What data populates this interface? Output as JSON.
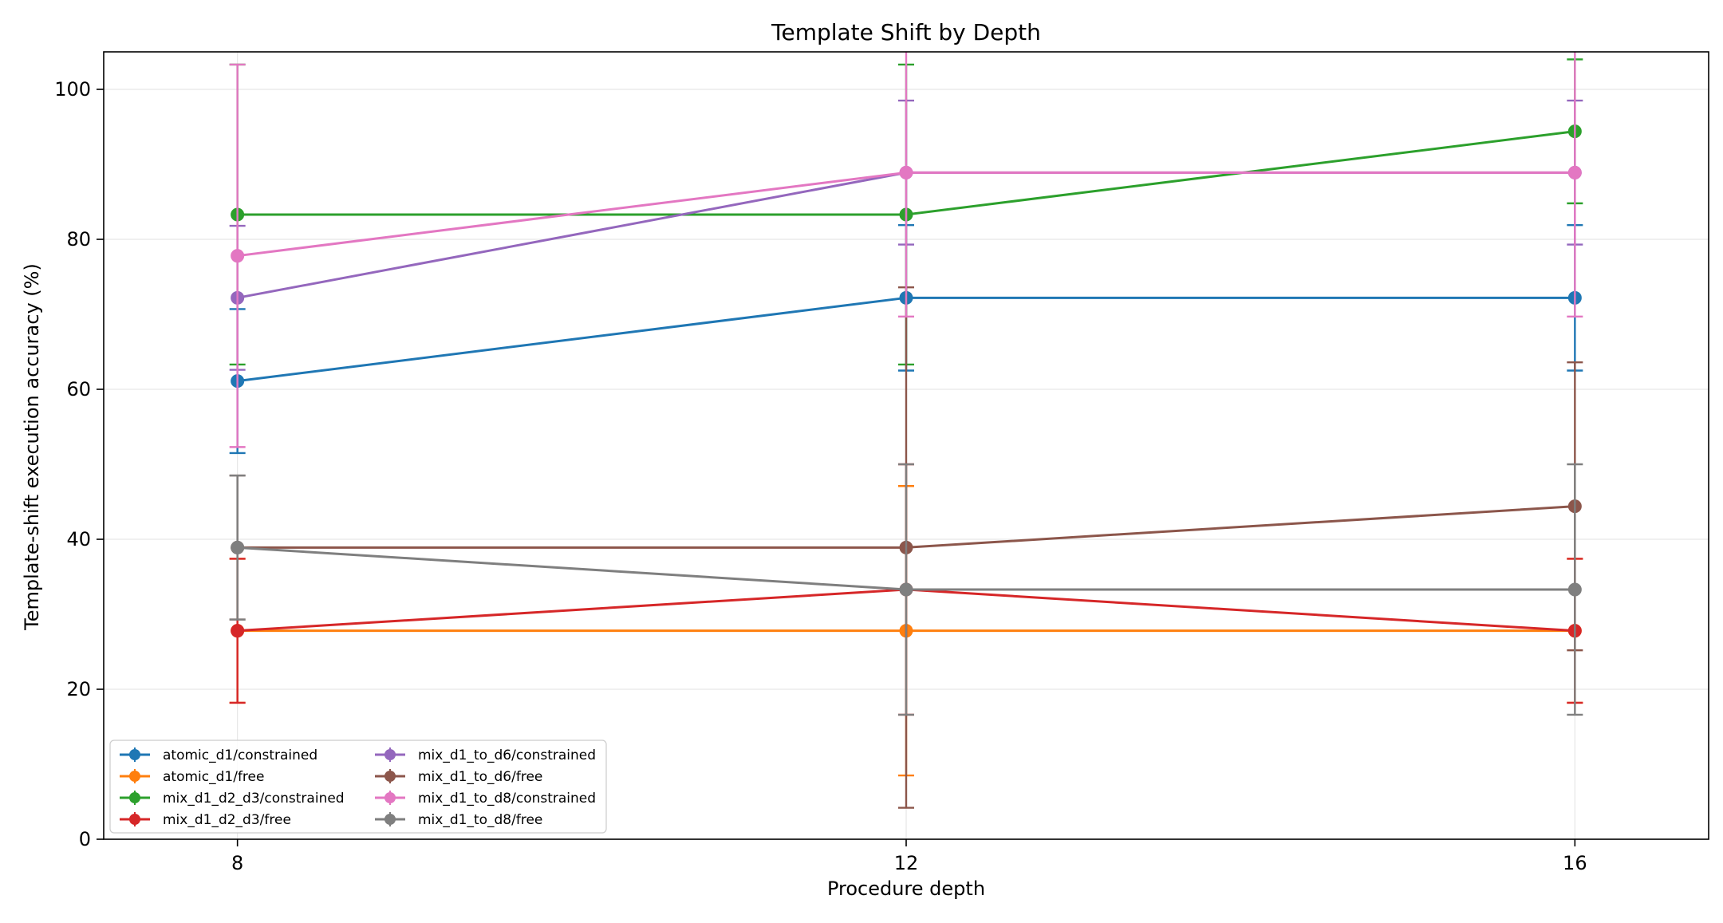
{
  "chart_data": {
    "type": "line",
    "title": "Template Shift by Depth",
    "xlabel": "Procedure depth",
    "ylabel": "Template-shift execution accuracy (%)",
    "x": [
      8,
      12,
      16
    ],
    "x_ticks": [
      "8",
      "12",
      "16"
    ],
    "y_ticks": [
      "0",
      "20",
      "40",
      "60",
      "80",
      "100"
    ],
    "xlim": [
      7.2,
      16.8
    ],
    "ylim": [
      0,
      105
    ],
    "grid": true,
    "legend_location": "lower-left",
    "legend_columns": 2,
    "series": [
      {
        "name": "atomic_d1/constrained",
        "color": "#1f77b4",
        "values": [
          61.1,
          72.2,
          72.2
        ],
        "err": [
          9.6,
          9.7,
          9.7
        ]
      },
      {
        "name": "atomic_d1/free",
        "color": "#ff7f0e",
        "values": [
          27.8,
          27.8,
          27.8
        ],
        "err": [
          9.6,
          19.3,
          9.6
        ]
      },
      {
        "name": "mix_d1_d2_d3/constrained",
        "color": "#2ca02c",
        "values": [
          83.3,
          83.3,
          94.4
        ],
        "err": [
          20.0,
          20.0,
          9.6
        ]
      },
      {
        "name": "mix_d1_d2_d3/free",
        "color": "#d62728",
        "values": [
          27.8,
          33.3,
          27.8
        ],
        "err": [
          9.6,
          16.7,
          9.6
        ]
      },
      {
        "name": "mix_d1_to_d6/constrained",
        "color": "#9467bd",
        "values": [
          72.2,
          88.9,
          88.9
        ],
        "err": [
          9.6,
          9.6,
          9.6
        ]
      },
      {
        "name": "mix_d1_to_d6/free",
        "color": "#8c564b",
        "values": [
          38.9,
          38.9,
          44.4
        ],
        "err": [
          9.6,
          34.7,
          19.2
        ]
      },
      {
        "name": "mix_d1_to_d8/constrained",
        "color": "#e377c2",
        "values": [
          77.8,
          88.9,
          88.9
        ],
        "err": [
          25.5,
          19.2,
          19.2
        ]
      },
      {
        "name": "mix_d1_to_d8/free",
        "color": "#7f7f7f",
        "values": [
          38.9,
          33.3,
          33.3
        ],
        "err": [
          9.6,
          16.7,
          16.7
        ]
      }
    ]
  }
}
